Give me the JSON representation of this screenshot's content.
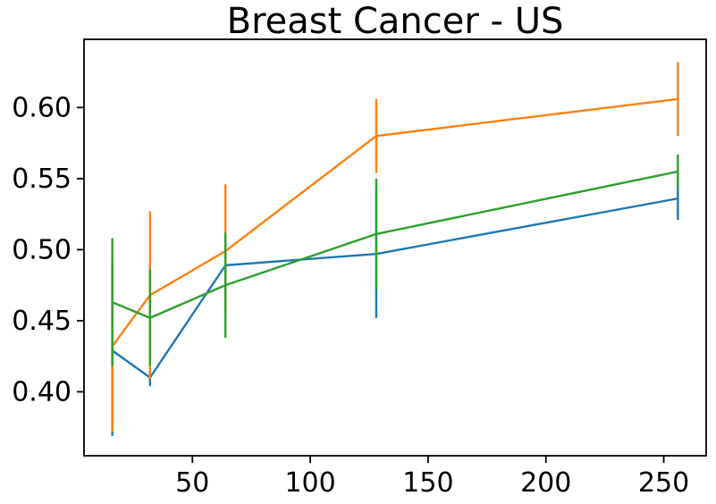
{
  "figure": {
    "background": "#ffffff"
  },
  "chart_data": {
    "type": "line",
    "title": "Breast Cancer - US",
    "xlabel": "",
    "ylabel": "",
    "x": [
      16,
      32,
      64,
      128,
      256
    ],
    "series": [
      {
        "name": "blue",
        "color": "#1f77b4",
        "values": [
          0.429,
          0.41,
          0.489,
          0.497,
          0.536
        ],
        "errors": [
          0.06,
          0.006,
          0.02,
          0.045,
          0.015
        ]
      },
      {
        "name": "orange",
        "color": "#ff7f0e",
        "values": [
          0.432,
          0.468,
          0.499,
          0.58,
          0.606
        ],
        "errors": [
          0.06,
          0.059,
          0.047,
          0.026,
          0.026
        ]
      },
      {
        "name": "green",
        "color": "#2ca02c",
        "values": [
          0.463,
          0.452,
          0.475,
          0.511,
          0.555
        ],
        "errors": [
          0.045,
          0.034,
          0.037,
          0.039,
          0.012
        ]
      }
    ],
    "xticks": {
      "values": [
        50,
        100,
        150,
        200,
        250
      ],
      "labels": [
        "50",
        "100",
        "150",
        "200",
        "250"
      ]
    },
    "yticks": {
      "values": [
        0.4,
        0.45,
        0.5,
        0.55,
        0.6
      ],
      "labels": [
        "0.40",
        "0.45",
        "0.50",
        "0.55",
        "0.60"
      ]
    },
    "xlim": [
      4,
      268
    ],
    "ylim": [
      0.355,
      0.648
    ],
    "grid": false,
    "legend": "none",
    "error_bars": true,
    "text_color": "#000000",
    "axis_color": "#000000"
  }
}
